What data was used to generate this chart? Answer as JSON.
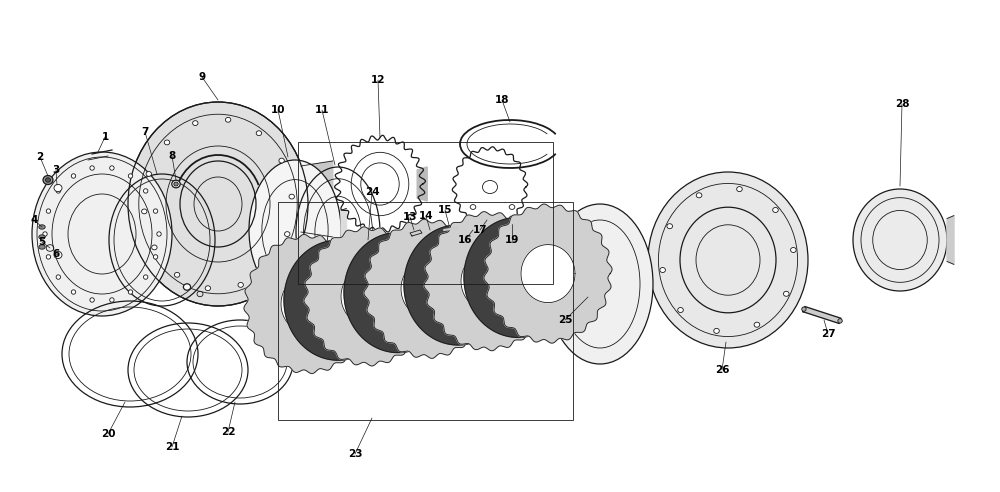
{
  "bg_color": "#ffffff",
  "line_color": "#1a1a1a",
  "label_color": "#000000",
  "fig_width": 10.0,
  "fig_height": 4.92
}
